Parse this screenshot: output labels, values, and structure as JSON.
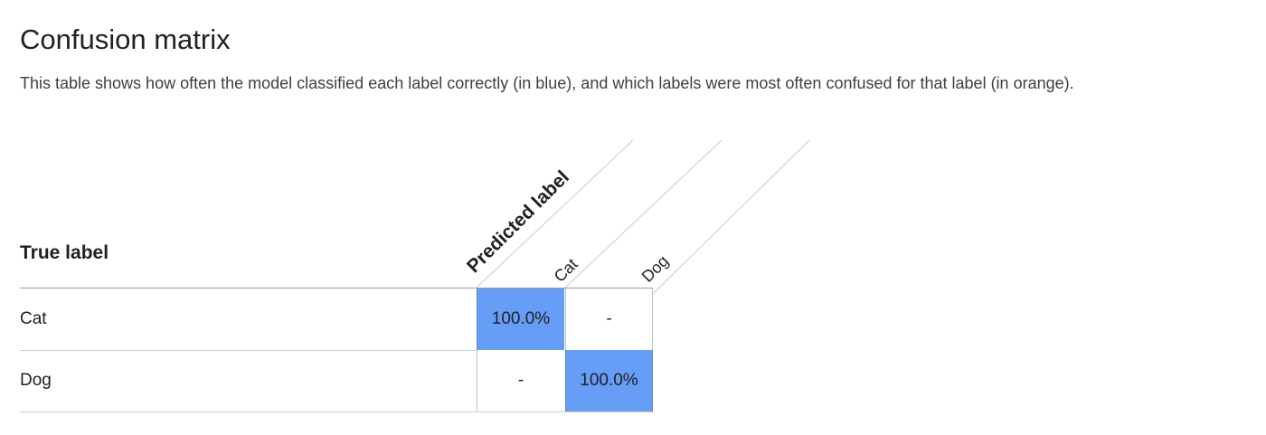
{
  "title": "Confusion matrix",
  "description": "This table shows how often the model classified each label correctly (in blue), and which labels were most often confused for that label (in orange).",
  "matrix": {
    "row_header": "True label",
    "column_header": "Predicted label",
    "columns": [
      "Cat",
      "Dog"
    ],
    "rows": [
      {
        "label": "Cat",
        "cells": [
          "100.0%",
          "-"
        ]
      },
      {
        "label": "Dog",
        "cells": [
          "-",
          "100.0%"
        ]
      }
    ]
  },
  "colors": {
    "correct": "#669df6",
    "confused": "orange",
    "empty": "#ffffff"
  }
}
